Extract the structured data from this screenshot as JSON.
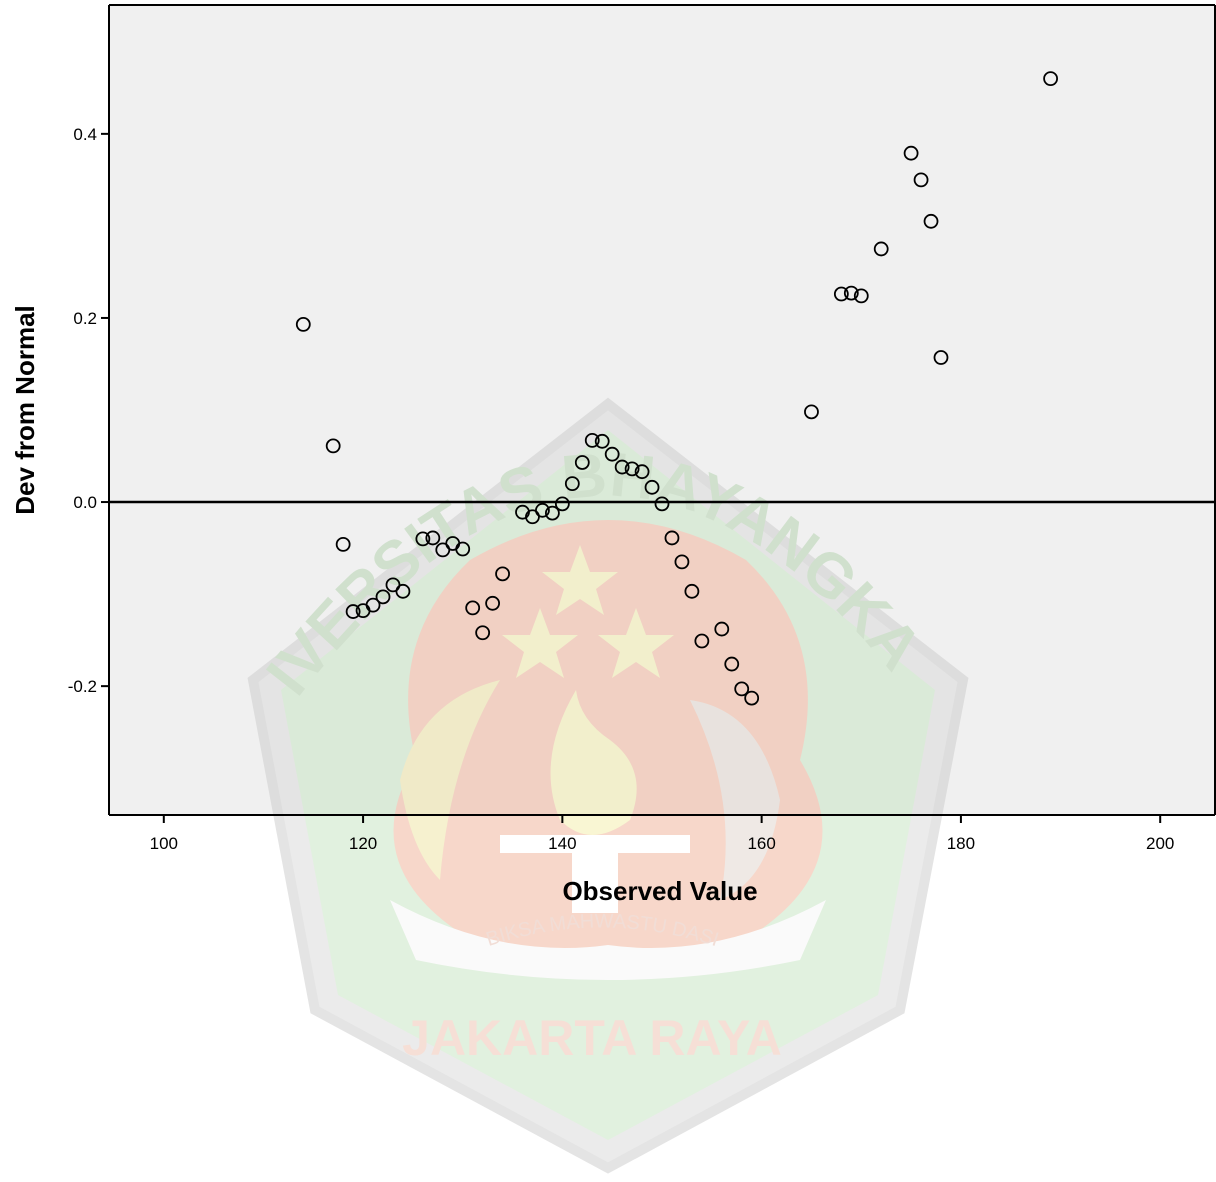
{
  "chart_data": {
    "type": "scatter",
    "xlabel": "Observed Value",
    "ylabel": "Dev from Normal",
    "xlim": [
      94.5,
      205.5
    ],
    "ylim": [
      -0.34,
      0.54
    ],
    "x_ticks": [
      100,
      120,
      140,
      160,
      180,
      200
    ],
    "y_ticks": [
      0.4,
      0.2,
      0.0,
      -0.2
    ],
    "x_tick_labels": [
      "100",
      "120",
      "140",
      "160",
      "180",
      "200"
    ],
    "y_tick_labels": [
      "0.4",
      "0.2",
      "0.0",
      "-0.2"
    ],
    "reference_line_y": 0.0,
    "grid": false,
    "legend": "none",
    "plot_background": "#f0f0f0",
    "marker": "open-circle",
    "points": [
      {
        "x": 114,
        "y": 0.193
      },
      {
        "x": 117,
        "y": 0.061
      },
      {
        "x": 118,
        "y": -0.046
      },
      {
        "x": 119,
        "y": -0.119
      },
      {
        "x": 120,
        "y": -0.118
      },
      {
        "x": 121,
        "y": -0.112
      },
      {
        "x": 122,
        "y": -0.103
      },
      {
        "x": 123,
        "y": -0.09
      },
      {
        "x": 124,
        "y": -0.097
      },
      {
        "x": 126,
        "y": -0.04
      },
      {
        "x": 127,
        "y": -0.039
      },
      {
        "x": 128,
        "y": -0.052
      },
      {
        "x": 129,
        "y": -0.045
      },
      {
        "x": 130,
        "y": -0.051
      },
      {
        "x": 131,
        "y": -0.115
      },
      {
        "x": 132,
        "y": -0.142
      },
      {
        "x": 133,
        "y": -0.11
      },
      {
        "x": 134,
        "y": -0.078
      },
      {
        "x": 136,
        "y": -0.011
      },
      {
        "x": 137,
        "y": -0.016
      },
      {
        "x": 138,
        "y": -0.009
      },
      {
        "x": 139,
        "y": -0.012
      },
      {
        "x": 140,
        "y": -0.002
      },
      {
        "x": 141,
        "y": 0.02
      },
      {
        "x": 142,
        "y": 0.043
      },
      {
        "x": 143,
        "y": 0.067
      },
      {
        "x": 144,
        "y": 0.066
      },
      {
        "x": 145,
        "y": 0.052
      },
      {
        "x": 146,
        "y": 0.038
      },
      {
        "x": 147,
        "y": 0.036
      },
      {
        "x": 148,
        "y": 0.033
      },
      {
        "x": 149,
        "y": 0.016
      },
      {
        "x": 150,
        "y": -0.002
      },
      {
        "x": 151,
        "y": -0.039
      },
      {
        "x": 152,
        "y": -0.065
      },
      {
        "x": 153,
        "y": -0.097
      },
      {
        "x": 154,
        "y": -0.151
      },
      {
        "x": 156,
        "y": -0.138
      },
      {
        "x": 157,
        "y": -0.176
      },
      {
        "x": 158,
        "y": -0.203
      },
      {
        "x": 159,
        "y": -0.213
      },
      {
        "x": 165,
        "y": 0.098
      },
      {
        "x": 168,
        "y": 0.226
      },
      {
        "x": 169,
        "y": 0.227
      },
      {
        "x": 170,
        "y": 0.224
      },
      {
        "x": 172,
        "y": 0.275
      },
      {
        "x": 175,
        "y": 0.379
      },
      {
        "x": 176,
        "y": 0.35
      },
      {
        "x": 177,
        "y": 0.305
      },
      {
        "x": 178,
        "y": 0.157
      },
      {
        "x": 189,
        "y": 0.46
      }
    ]
  },
  "watermark": {
    "arc_text": "UNIVERSITAS BHAYANGKARA",
    "motto": "BIKSA MAHWASTU DASI",
    "city": "JAKARTA RAYA",
    "colors": {
      "outer": "#d6d6d6",
      "green": "#c9e6c5",
      "red": "#f2b79f",
      "yellow": "#f5efb0"
    }
  },
  "colors": {
    "axis": "#000000",
    "marker_stroke": "#000000",
    "marker_fill": "none"
  }
}
